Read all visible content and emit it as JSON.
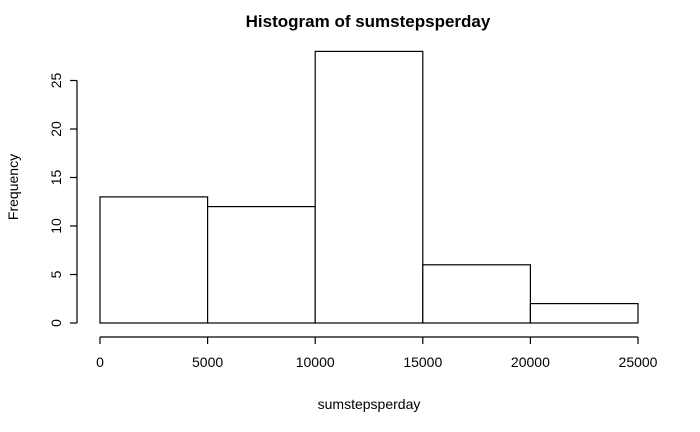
{
  "chart_data": {
    "type": "bar",
    "title": "Histogram of sumstepsperday",
    "xlabel": "sumstepsperday",
    "ylabel": "Frequency",
    "bins": [
      {
        "x0": 0,
        "x1": 5000,
        "count": 13
      },
      {
        "x0": 5000,
        "x1": 10000,
        "count": 12
      },
      {
        "x0": 10000,
        "x1": 15000,
        "count": 28
      },
      {
        "x0": 15000,
        "x1": 20000,
        "count": 6
      },
      {
        "x0": 20000,
        "x1": 25000,
        "count": 2
      }
    ],
    "xlim": [
      0,
      25000
    ],
    "ylim": [
      0,
      28
    ],
    "xticks": [
      0,
      5000,
      10000,
      15000,
      20000,
      25000
    ],
    "yticks": [
      0,
      5,
      10,
      15,
      20,
      25
    ],
    "grid": false
  },
  "colors": {
    "bar_fill": "#ffffff",
    "bar_stroke": "#000000",
    "background": "#ffffff"
  }
}
